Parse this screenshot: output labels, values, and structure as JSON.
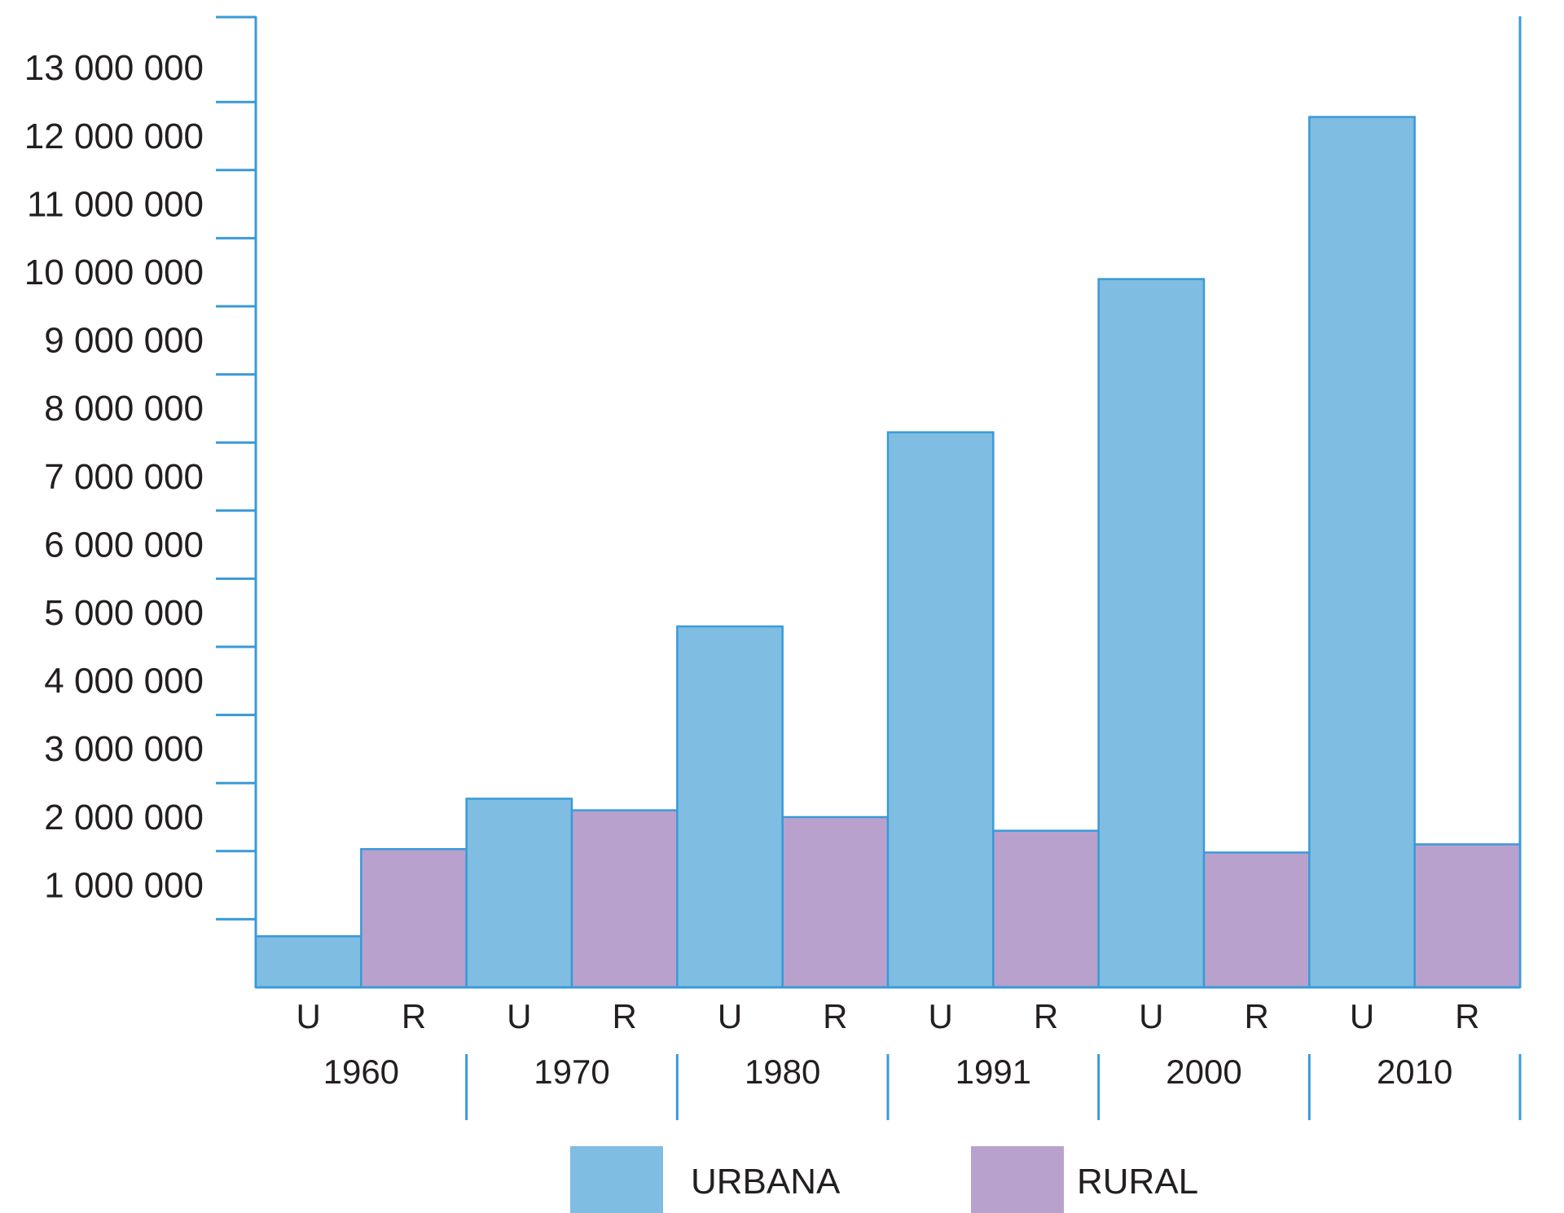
{
  "chart_data": {
    "type": "bar",
    "title": "",
    "xlabel": "",
    "ylabel": "",
    "ylim": [
      0,
      13000000
    ],
    "yticks": [
      1000000,
      2000000,
      3000000,
      4000000,
      5000000,
      6000000,
      7000000,
      8000000,
      9000000,
      10000000,
      11000000,
      12000000,
      13000000
    ],
    "ytick_labels": [
      "1 000 000",
      "2 000 000",
      "3 000 000",
      "4 000 000",
      "5 000 000",
      "6 000 000",
      "7 000 000",
      "8 000 000",
      "9 000 000",
      "10 000 000",
      "11 000 000",
      "12 000 000",
      "13 000 000"
    ],
    "categories": [
      "1960",
      "1970",
      "1980",
      "1991",
      "2000",
      "2010"
    ],
    "sub_labels": [
      "U",
      "R"
    ],
    "series": [
      {
        "name": "URBANA",
        "color": "#7fbde2",
        "values": [
          750000,
          2770000,
          5300000,
          8150000,
          10400000,
          12780000
        ]
      },
      {
        "name": "RURAL",
        "color": "#b9a1cd",
        "values": [
          2030000,
          2600000,
          2500000,
          2300000,
          1980000,
          2100000
        ]
      }
    ],
    "axis_color": "#3a9ad8",
    "grid": false,
    "legend": "bottom"
  }
}
